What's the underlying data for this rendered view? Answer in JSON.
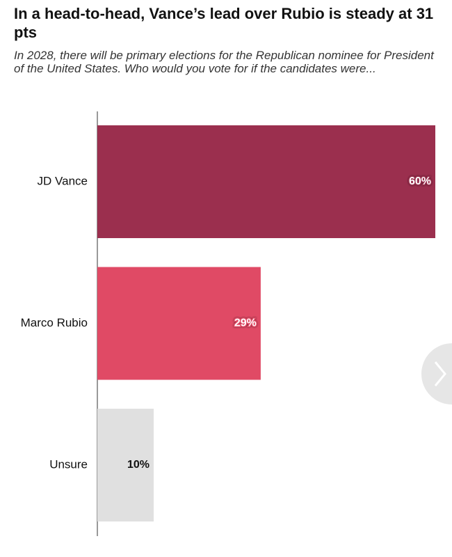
{
  "chart_data": {
    "type": "bar",
    "orientation": "horizontal",
    "title": "In a head-to-head, Vance’s lead over Rubio is steady at 31 pts",
    "subtitle": "In 2028, there will be primary elections for the Republican nominee for President of the United States. Who would you vote for if the candidates were...",
    "categories": [
      "JD Vance",
      "Marco Rubio",
      "Unsure"
    ],
    "values": [
      60,
      29,
      10
    ],
    "value_labels": [
      "60%",
      "29%",
      "10%"
    ],
    "colors": [
      "#9b2f4e",
      "#e04a65",
      "#e0e0e0"
    ],
    "label_colors": [
      "#ffffff",
      "#ffffff",
      "#111111"
    ]
  }
}
